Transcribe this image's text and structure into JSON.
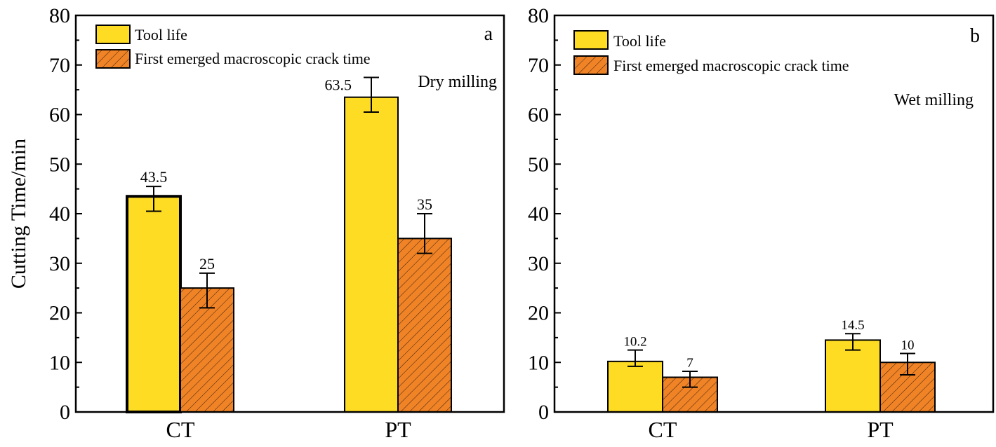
{
  "chart_data": [
    {
      "type": "bar",
      "panel": "a",
      "condition": "Dry milling",
      "ylabel": "Cutting Time/min",
      "xlabel": "",
      "ylim": [
        0,
        80
      ],
      "yticks": [
        0,
        10,
        20,
        30,
        40,
        50,
        60,
        70,
        80
      ],
      "categories": [
        "CT",
        "PT"
      ],
      "legend_position": "top-left",
      "series": [
        {
          "name": "Tool life",
          "color": "#FFDC24",
          "hatch": false,
          "values": [
            43.5,
            63.5
          ],
          "labels": [
            "43.5",
            "63.5"
          ],
          "err_low": [
            40.5,
            60.5
          ],
          "err_high": [
            45.5,
            67.5
          ]
        },
        {
          "name": "First emerged macroscopic crack time",
          "color": "#F08326",
          "hatch": true,
          "values": [
            25,
            35
          ],
          "labels": [
            "25",
            "35"
          ],
          "err_low": [
            21,
            32
          ],
          "err_high": [
            28,
            40
          ]
        }
      ]
    },
    {
      "type": "bar",
      "panel": "b",
      "condition": "Wet milling",
      "ylabel": "",
      "xlabel": "",
      "ylim": [
        0,
        80
      ],
      "yticks": [
        0,
        10,
        20,
        30,
        40,
        50,
        60,
        70,
        80
      ],
      "categories": [
        "CT",
        "PT"
      ],
      "legend_position": "top-left",
      "series": [
        {
          "name": "Tool life",
          "color": "#FFDC24",
          "hatch": false,
          "values": [
            10.2,
            14.5
          ],
          "labels": [
            "10.2",
            "14.5"
          ],
          "err_low": [
            9.2,
            12.5
          ],
          "err_high": [
            12.5,
            15.8
          ]
        },
        {
          "name": "First emerged macroscopic crack time",
          "color": "#F08326",
          "hatch": true,
          "values": [
            7,
            10
          ],
          "labels": [
            "7",
            "10"
          ],
          "err_low": [
            5,
            7.5
          ],
          "err_high": [
            8.2,
            11.8
          ]
        }
      ]
    }
  ]
}
